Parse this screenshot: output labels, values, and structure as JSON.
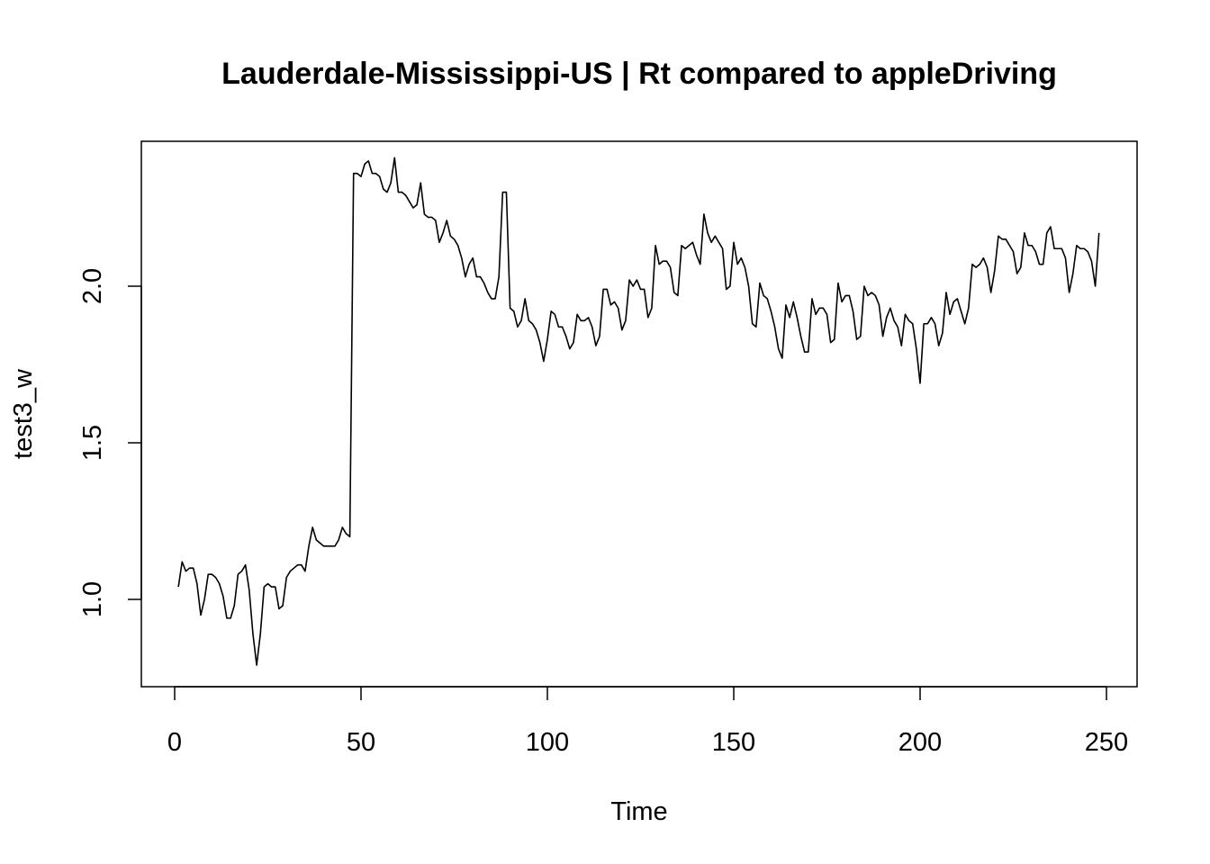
{
  "chart_data": {
    "type": "line",
    "title": "Lauderdale-Mississippi-US | Rt compared to appleDriving",
    "xlabel": "Time",
    "ylabel": "test3_w",
    "xlim": [
      0,
      250
    ],
    "ylim": [
      0.78,
      2.4
    ],
    "x_ticks": [
      0,
      50,
      100,
      150,
      200,
      250
    ],
    "y_ticks": [
      1.0,
      1.5,
      2.0
    ],
    "x_tick_labels": [
      "0",
      "50",
      "100",
      "150",
      "200",
      "250"
    ],
    "y_tick_labels": [
      "1.0",
      "1.5",
      "2.0"
    ],
    "grid": false,
    "legend": "none",
    "series": [
      {
        "color": "#000000",
        "x": [
          1,
          2,
          3,
          4,
          5,
          6,
          7,
          8,
          9,
          10,
          11,
          12,
          13,
          14,
          15,
          16,
          17,
          18,
          19,
          20,
          21,
          22,
          23,
          24,
          25,
          26,
          27,
          28,
          29,
          30,
          31,
          32,
          33,
          34,
          35,
          36,
          37,
          38,
          39,
          40,
          41,
          42,
          43,
          44,
          45,
          46,
          47,
          48,
          49,
          50,
          51,
          52,
          53,
          54,
          55,
          56,
          57,
          58,
          59,
          60,
          61,
          62,
          63,
          64,
          65,
          66,
          67,
          68,
          69,
          70,
          71,
          72,
          73,
          74,
          75,
          76,
          77,
          78,
          79,
          80,
          81,
          82,
          83,
          84,
          85,
          86,
          87,
          88,
          89,
          90,
          91,
          92,
          93,
          94,
          95,
          96,
          97,
          98,
          99,
          100,
          101,
          102,
          103,
          104,
          105,
          106,
          107,
          108,
          109,
          110,
          111,
          112,
          113,
          114,
          115,
          116,
          117,
          118,
          119,
          120,
          121,
          122,
          123,
          124,
          125,
          126,
          127,
          128,
          129,
          130,
          131,
          132,
          133,
          134,
          135,
          136,
          137,
          138,
          139,
          140,
          141,
          142,
          143,
          144,
          145,
          146,
          147,
          148,
          149,
          150,
          151,
          152,
          153,
          154,
          155,
          156,
          157,
          158,
          159,
          160,
          161,
          162,
          163,
          164,
          165,
          166,
          167,
          168,
          169,
          170,
          171,
          172,
          173,
          174,
          175,
          176,
          177,
          178,
          179,
          180,
          181,
          182,
          183,
          184,
          185,
          186,
          187,
          188,
          189,
          190,
          191,
          192,
          193,
          194,
          195,
          196,
          197,
          198,
          199,
          200,
          201,
          202,
          203,
          204,
          205,
          206,
          207,
          208,
          209,
          210,
          211,
          212,
          213,
          214,
          215,
          216,
          217,
          218,
          219,
          220,
          221,
          222,
          223,
          224,
          225,
          226,
          227,
          228,
          229,
          230,
          231,
          232,
          233,
          234,
          235,
          236,
          237,
          238,
          239,
          240,
          241,
          242,
          243,
          244,
          245,
          246,
          247,
          248
        ],
        "y": [
          1.04,
          1.12,
          1.09,
          1.1,
          1.1,
          1.05,
          0.95,
          1.0,
          1.08,
          1.08,
          1.07,
          1.05,
          1.01,
          0.94,
          0.94,
          0.98,
          1.08,
          1.09,
          1.11,
          1.03,
          0.89,
          0.79,
          0.89,
          1.04,
          1.05,
          1.04,
          1.04,
          0.97,
          0.98,
          1.07,
          1.09,
          1.1,
          1.11,
          1.11,
          1.09,
          1.17,
          1.23,
          1.19,
          1.18,
          1.17,
          1.17,
          1.17,
          1.17,
          1.19,
          1.23,
          1.21,
          1.2,
          2.36,
          2.36,
          2.35,
          2.39,
          2.4,
          2.36,
          2.36,
          2.35,
          2.31,
          2.3,
          2.33,
          2.41,
          2.3,
          2.3,
          2.29,
          2.27,
          2.25,
          2.26,
          2.33,
          2.23,
          2.22,
          2.22,
          2.21,
          2.14,
          2.17,
          2.21,
          2.16,
          2.15,
          2.13,
          2.09,
          2.03,
          2.07,
          2.09,
          2.03,
          2.03,
          2.01,
          1.98,
          1.96,
          1.96,
          2.03,
          2.3,
          2.3,
          1.93,
          1.92,
          1.87,
          1.89,
          1.96,
          1.89,
          1.88,
          1.86,
          1.82,
          1.76,
          1.83,
          1.92,
          1.91,
          1.87,
          1.87,
          1.84,
          1.8,
          1.82,
          1.91,
          1.89,
          1.89,
          1.9,
          1.87,
          1.81,
          1.84,
          1.99,
          1.99,
          1.94,
          1.95,
          1.93,
          1.86,
          1.89,
          2.02,
          2.0,
          2.02,
          1.99,
          1.99,
          1.9,
          1.93,
          2.13,
          2.07,
          2.08,
          2.08,
          2.06,
          1.98,
          1.97,
          2.13,
          2.12,
          2.13,
          2.14,
          2.1,
          2.07,
          2.23,
          2.17,
          2.14,
          2.16,
          2.14,
          2.12,
          1.99,
          2.0,
          2.14,
          2.07,
          2.09,
          2.06,
          2.0,
          1.88,
          1.87,
          2.01,
          1.97,
          1.96,
          1.92,
          1.87,
          1.8,
          1.77,
          1.94,
          1.9,
          1.95,
          1.9,
          1.84,
          1.79,
          1.79,
          1.96,
          1.91,
          1.93,
          1.93,
          1.91,
          1.82,
          1.83,
          2.01,
          1.95,
          1.97,
          1.97,
          1.92,
          1.83,
          1.84,
          2.0,
          1.97,
          1.98,
          1.97,
          1.94,
          1.84,
          1.9,
          1.93,
          1.89,
          1.87,
          1.81,
          1.91,
          1.89,
          1.88,
          1.8,
          1.69,
          1.88,
          1.88,
          1.9,
          1.88,
          1.81,
          1.85,
          1.98,
          1.91,
          1.95,
          1.96,
          1.92,
          1.88,
          1.93,
          2.07,
          2.06,
          2.07,
          2.09,
          2.06,
          1.98,
          2.05,
          2.16,
          2.15,
          2.15,
          2.13,
          2.11,
          2.04,
          2.06,
          2.17,
          2.13,
          2.13,
          2.11,
          2.07,
          2.07,
          2.17,
          2.19,
          2.12,
          2.12,
          2.12,
          2.09,
          1.98,
          2.04,
          2.13,
          2.12,
          2.12,
          2.11,
          2.08,
          2.0,
          2.17
        ]
      }
    ]
  }
}
